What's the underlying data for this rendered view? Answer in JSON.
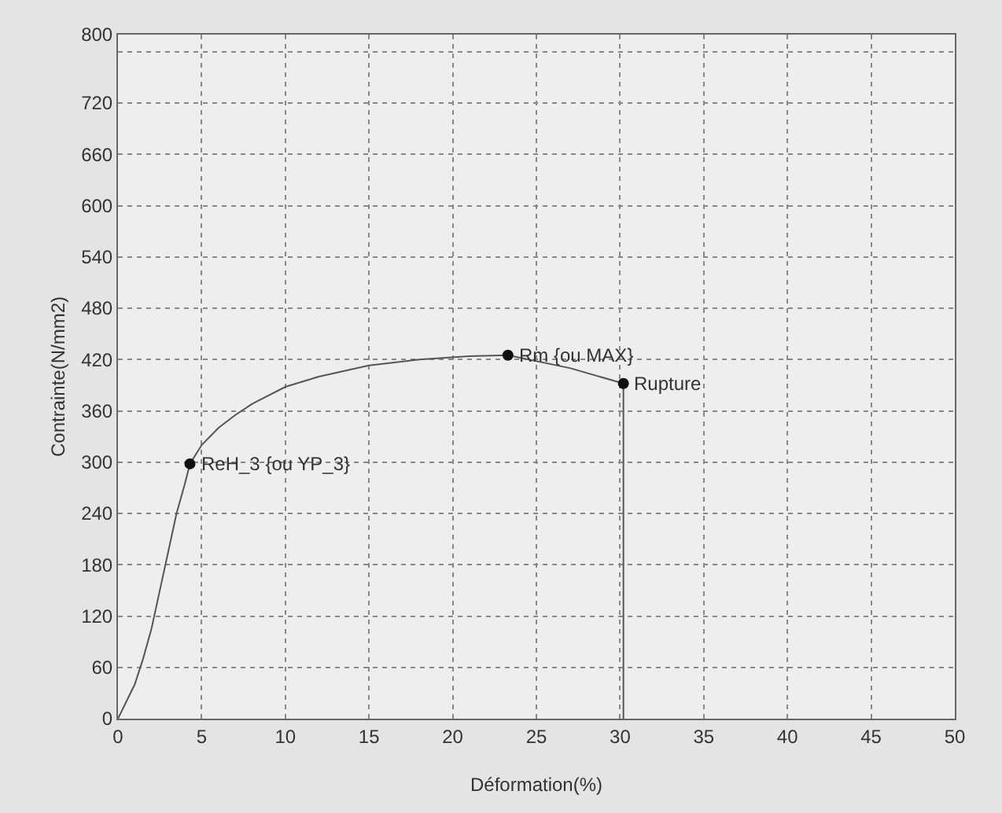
{
  "chart_data": {
    "type": "line",
    "xlabel": "Déformation(%)",
    "ylabel": "Contrainte(N/mm2)",
    "x": [
      0,
      0.5,
      1,
      1.5,
      2,
      2.5,
      3,
      3.5,
      4,
      4.3,
      5,
      6,
      7,
      8,
      10,
      12,
      15,
      18,
      21,
      23.3,
      27,
      30.2,
      30.2
    ],
    "series": [
      {
        "color": "#555555",
        "values": [
          0,
          20,
          40,
          70,
          105,
          150,
          195,
          240,
          275,
          298,
          320,
          340,
          355,
          368,
          388,
          400,
          413,
          420,
          424,
          425,
          410,
          392,
          0
        ]
      }
    ],
    "xlim": [
      0,
      50
    ],
    "xticks": [
      0,
      5,
      10,
      15,
      20,
      25,
      30,
      35,
      40,
      45,
      50
    ],
    "ylim": [
      0,
      800
    ],
    "yticks": [
      0,
      60,
      120,
      180,
      240,
      300,
      360,
      420,
      480,
      540,
      600,
      660,
      720,
      {
        "value": 780,
        "label": null
      },
      800
    ],
    "grid": true,
    "line_style": "solid",
    "marker": "none",
    "annotations": [
      {
        "text": "ReH_3 {ou YP_3}",
        "x": 4.3,
        "y": 298
      },
      {
        "text": "Rm {ou MAX}",
        "x": 23.3,
        "y": 425
      },
      {
        "text": "Rupture",
        "x": 30.2,
        "y": 392
      }
    ]
  }
}
